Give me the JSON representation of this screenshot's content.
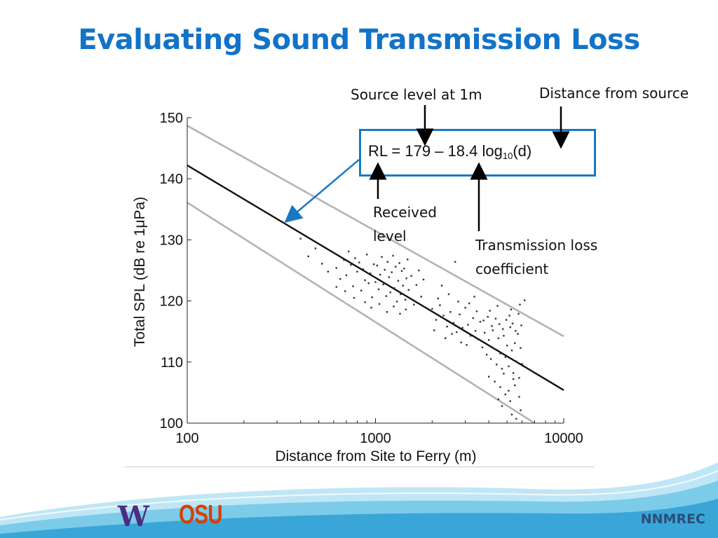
{
  "slide": {
    "title": "Evaluating Sound Transmission Loss",
    "footer": "NNMREC",
    "logos": {
      "uw": "W",
      "osu": "OSU"
    }
  },
  "annotations": {
    "source_level": "Source level at 1m",
    "distance": "Distance from source",
    "received_1": "Received",
    "received_2": "level",
    "tl_1": "Transmission loss",
    "tl_2": "coefficient",
    "eq_prefix": "RL = 179 – 18.4 log",
    "eq_sub": "10",
    "eq_suffix": "(d)"
  },
  "colors": {
    "title": "#1273c9",
    "box_border": "#1a78c2",
    "fit_line": "#111111",
    "bound_lines": "#b3b3b3",
    "points": "#333333",
    "footer_wave": "#3aa6d8"
  },
  "chart_data": {
    "type": "scatter",
    "xscale": "log",
    "xlabel": "Distance from Site to Ferry (m)",
    "ylabel": "Total SPL (dB re 1μPa)",
    "xlim": [
      100,
      10000
    ],
    "ylim": [
      100,
      150
    ],
    "xticks": [
      {
        "value": 100,
        "label": "100"
      },
      {
        "value": 1000,
        "label": "1000"
      },
      {
        "value": 10000,
        "label": "10000"
      }
    ],
    "yticks": [
      {
        "value": 100,
        "label": "100"
      },
      {
        "value": 110,
        "label": "110"
      },
      {
        "value": 120,
        "label": "120"
      },
      {
        "value": 130,
        "label": "130"
      },
      {
        "value": 140,
        "label": "140"
      },
      {
        "value": 150,
        "label": "150"
      }
    ],
    "lines": [
      {
        "role": "fit",
        "x": [
          100,
          10000
        ],
        "y": [
          142.2,
          105.4
        ]
      },
      {
        "role": "upper",
        "x": [
          100,
          10000
        ],
        "y": [
          148.7,
          114.2
        ]
      },
      {
        "role": "lower",
        "x": [
          100,
          7000
        ],
        "y": [
          136.1,
          100.0
        ]
      }
    ],
    "points": [
      [
        400,
        130.2
      ],
      [
        440,
        127.3
      ],
      [
        480,
        128.6
      ],
      [
        520,
        126.1
      ],
      [
        560,
        124.8
      ],
      [
        600,
        127.9
      ],
      [
        620,
        125.4
      ],
      [
        650,
        123.6
      ],
      [
        680,
        126.7
      ],
      [
        700,
        124.2
      ],
      [
        720,
        128.1
      ],
      [
        740,
        125.9
      ],
      [
        760,
        122.4
      ],
      [
        780,
        127.0
      ],
      [
        800,
        124.8
      ],
      [
        820,
        126.3
      ],
      [
        840,
        121.7
      ],
      [
        860,
        125.2
      ],
      [
        880,
        123.4
      ],
      [
        900,
        127.6
      ],
      [
        920,
        122.9
      ],
      [
        940,
        124.5
      ],
      [
        960,
        120.6
      ],
      [
        980,
        126.0
      ],
      [
        1000,
        123.1
      ],
      [
        1020,
        125.8
      ],
      [
        1040,
        121.9
      ],
      [
        1060,
        124.3
      ],
      [
        1080,
        127.2
      ],
      [
        1100,
        122.7
      ],
      [
        1120,
        125.1
      ],
      [
        1140,
        120.8
      ],
      [
        1160,
        126.4
      ],
      [
        1180,
        123.9
      ],
      [
        1200,
        121.4
      ],
      [
        1220,
        124.7
      ],
      [
        1240,
        127.4
      ],
      [
        1260,
        122.1
      ],
      [
        1280,
        125.6
      ],
      [
        1300,
        119.9
      ],
      [
        1320,
        123.3
      ],
      [
        1340,
        126.2
      ],
      [
        1360,
        121.1
      ],
      [
        1380,
        124.9
      ],
      [
        1400,
        122.5
      ],
      [
        1420,
        125.3
      ],
      [
        1440,
        120.2
      ],
      [
        1460,
        123.7
      ],
      [
        1480,
        126.8
      ],
      [
        1500,
        121.8
      ],
      [
        1550,
        124.1
      ],
      [
        1600,
        119.4
      ],
      [
        1650,
        122.6
      ],
      [
        1700,
        125.0
      ],
      [
        1750,
        120.7
      ],
      [
        1800,
        123.5
      ],
      [
        950,
        118.9
      ],
      [
        1050,
        119.5
      ],
      [
        1150,
        118.2
      ],
      [
        1250,
        119.1
      ],
      [
        880,
        119.8
      ],
      [
        1350,
        117.9
      ],
      [
        1450,
        118.6
      ],
      [
        770,
        120.5
      ],
      [
        690,
        121.6
      ],
      [
        620,
        122.3
      ],
      [
        2000,
        118.7
      ],
      [
        2100,
        116.9
      ],
      [
        2200,
        119.3
      ],
      [
        2300,
        117.6
      ],
      [
        2400,
        115.8
      ],
      [
        2500,
        118.2
      ],
      [
        2600,
        116.4
      ],
      [
        2700,
        114.9
      ],
      [
        2800,
        117.8
      ],
      [
        2900,
        115.6
      ],
      [
        3000,
        118.9
      ],
      [
        3100,
        116.1
      ],
      [
        3200,
        114.3
      ],
      [
        3300,
        117.2
      ],
      [
        3400,
        115.1
      ],
      [
        3500,
        113.7
      ],
      [
        3600,
        116.6
      ],
      [
        2150,
        120.4
      ],
      [
        2450,
        121.1
      ],
      [
        2750,
        119.9
      ],
      [
        2350,
        113.9
      ],
      [
        2850,
        113.2
      ],
      [
        3150,
        119.6
      ],
      [
        3450,
        118.3
      ],
      [
        2050,
        115.2
      ],
      [
        2550,
        114.6
      ],
      [
        3050,
        112.8
      ],
      [
        3350,
        120.7
      ],
      [
        2650,
        126.4
      ],
      [
        2250,
        122.5
      ],
      [
        3700,
        112.4
      ],
      [
        3800,
        114.8
      ],
      [
        3900,
        111.2
      ],
      [
        4000,
        113.6
      ],
      [
        4100,
        110.5
      ],
      [
        4200,
        115.2
      ],
      [
        4300,
        112.1
      ],
      [
        4400,
        109.6
      ],
      [
        4500,
        113.9
      ],
      [
        4600,
        111.4
      ],
      [
        4700,
        108.9
      ],
      [
        4800,
        114.3
      ],
      [
        4900,
        110.8
      ],
      [
        5000,
        112.7
      ],
      [
        5100,
        109.3
      ],
      [
        5200,
        115.7
      ],
      [
        5300,
        111.9
      ],
      [
        5400,
        108.2
      ],
      [
        5500,
        113.1
      ],
      [
        5600,
        110.1
      ],
      [
        5700,
        114.6
      ],
      [
        5800,
        107.4
      ],
      [
        5900,
        112.3
      ],
      [
        6000,
        109.7
      ],
      [
        3750,
        116.8
      ],
      [
        3950,
        117.4
      ],
      [
        4150,
        115.9
      ],
      [
        4350,
        117.1
      ],
      [
        4550,
        116.2
      ],
      [
        4750,
        115.4
      ],
      [
        4950,
        116.9
      ],
      [
        5150,
        117.6
      ],
      [
        5350,
        116.3
      ],
      [
        5550,
        115.1
      ],
      [
        5750,
        117.9
      ],
      [
        5950,
        116.0
      ],
      [
        4050,
        118.4
      ],
      [
        4450,
        119.2
      ],
      [
        5250,
        118.6
      ],
      [
        5850,
        119.4
      ],
      [
        6200,
        120.1
      ],
      [
        4000,
        107.6
      ],
      [
        4300,
        106.8
      ],
      [
        4600,
        105.9
      ],
      [
        4900,
        104.7
      ],
      [
        5200,
        103.6
      ],
      [
        5500,
        106.2
      ],
      [
        5800,
        104.3
      ],
      [
        4700,
        102.8
      ],
      [
        5300,
        101.4
      ],
      [
        5600,
        100.7
      ],
      [
        4500,
        103.9
      ],
      [
        5100,
        105.3
      ],
      [
        5900,
        102.1
      ],
      [
        4800,
        108.1
      ],
      [
        5400,
        107.2
      ]
    ]
  }
}
